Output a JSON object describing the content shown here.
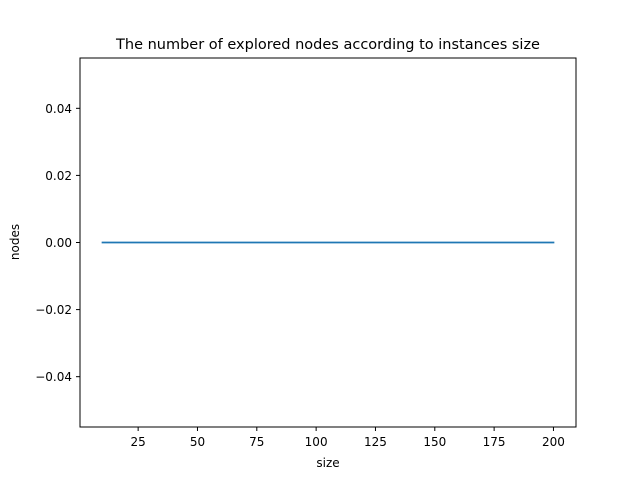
{
  "chart_data": {
    "type": "line",
    "title": "The number of explored nodes according to instances size",
    "xlabel": "size",
    "ylabel": "nodes",
    "x": [
      10,
      200
    ],
    "series": [
      {
        "values": [
          0.0,
          0.0
        ],
        "color": "#1f77b4"
      }
    ],
    "xlim": [
      0.5,
      209.5
    ],
    "ylim": [
      -0.055,
      0.055
    ],
    "xticks": [
      25,
      50,
      75,
      100,
      125,
      150,
      175,
      200
    ],
    "xtick_labels": [
      "25",
      "50",
      "75",
      "100",
      "125",
      "150",
      "175",
      "200"
    ],
    "yticks": [
      -0.04,
      -0.02,
      0.0,
      0.02,
      0.04
    ],
    "ytick_labels": [
      "−0.04",
      "−0.02",
      "0.00",
      "0.02",
      "0.04"
    ],
    "grid": false,
    "legend": false
  }
}
